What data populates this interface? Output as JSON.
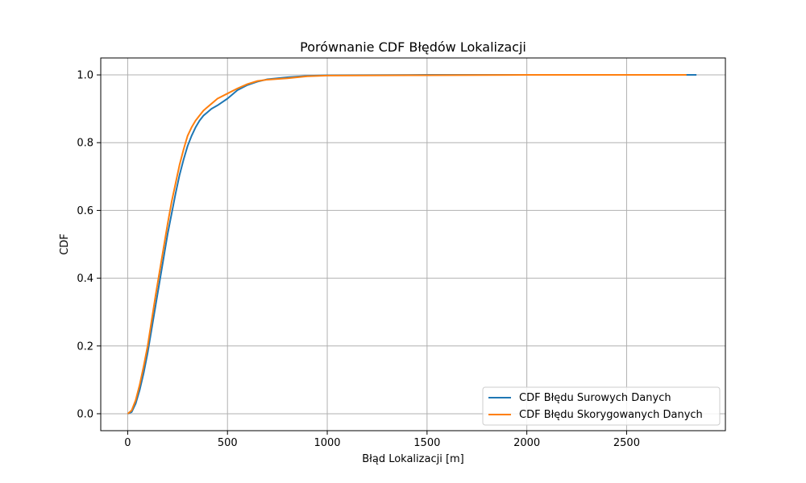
{
  "chart_data": {
    "type": "line",
    "title": "Porównanie CDF Błędów Lokalizacji",
    "xlabel": "Błąd Lokalizacji [m]",
    "ylabel": "CDF",
    "xlim": [
      -135,
      2995
    ],
    "ylim": [
      -0.05,
      1.05
    ],
    "xticks": [
      0,
      500,
      1000,
      1500,
      2000,
      2500
    ],
    "yticks": [
      0.0,
      0.2,
      0.4,
      0.6,
      0.8,
      1.0
    ],
    "xtick_labels": [
      "0",
      "500",
      "1000",
      "1500",
      "2000",
      "2500"
    ],
    "ytick_labels": [
      "0.0",
      "0.2",
      "0.4",
      "0.6",
      "0.8",
      "1.0"
    ],
    "grid": true,
    "legend_position": "lower-right",
    "series": [
      {
        "name": "CDF Błędu Surowych Danych",
        "color": "#1f77b4",
        "x": [
          0,
          20,
          40,
          60,
          80,
          100,
          120,
          140,
          160,
          180,
          200,
          220,
          240,
          260,
          280,
          300,
          320,
          340,
          360,
          380,
          400,
          420,
          450,
          500,
          550,
          600,
          650,
          700,
          800,
          900,
          1000,
          1500,
          2000,
          2500,
          2850
        ],
        "y": [
          0.0,
          0.005,
          0.03,
          0.07,
          0.12,
          0.18,
          0.25,
          0.32,
          0.39,
          0.46,
          0.53,
          0.59,
          0.65,
          0.705,
          0.75,
          0.79,
          0.82,
          0.845,
          0.865,
          0.88,
          0.89,
          0.9,
          0.91,
          0.93,
          0.955,
          0.97,
          0.98,
          0.987,
          0.993,
          0.997,
          0.999,
          1.0,
          1.0,
          1.0,
          1.0
        ]
      },
      {
        "name": "CDF Błędu Skorygowanych Danych",
        "color": "#ff7f0e",
        "x": [
          0,
          20,
          40,
          60,
          80,
          100,
          120,
          140,
          160,
          180,
          200,
          220,
          240,
          260,
          280,
          300,
          320,
          340,
          360,
          380,
          400,
          420,
          450,
          500,
          550,
          600,
          650,
          700,
          800,
          900,
          1000,
          1500,
          2000,
          2500,
          2800
        ],
        "y": [
          0.0,
          0.01,
          0.04,
          0.085,
          0.14,
          0.2,
          0.275,
          0.35,
          0.42,
          0.49,
          0.56,
          0.625,
          0.68,
          0.735,
          0.78,
          0.82,
          0.845,
          0.865,
          0.88,
          0.895,
          0.905,
          0.915,
          0.93,
          0.945,
          0.96,
          0.973,
          0.982,
          0.986,
          0.99,
          0.996,
          0.998,
          0.999,
          1.0,
          1.0,
          1.0
        ]
      }
    ]
  }
}
